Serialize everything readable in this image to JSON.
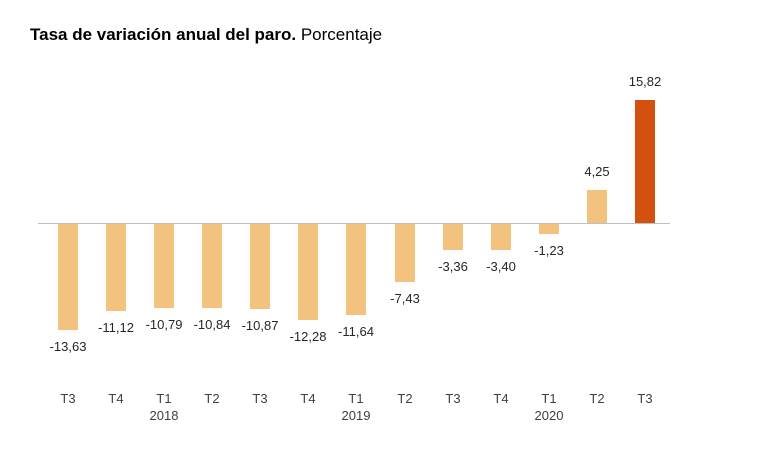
{
  "title": {
    "bold": "Tasa de variación anual del paro.",
    "regular": " Porcentaje"
  },
  "chart_data": {
    "type": "bar",
    "title": "Tasa de variación anual del paro. Porcentaje",
    "xlabel": "",
    "ylabel": "",
    "categories": [
      "T3",
      "T4",
      "T1",
      "T2",
      "T3",
      "T4",
      "T1",
      "T2",
      "T3",
      "T4",
      "T1",
      "T2",
      "T3"
    ],
    "year_labels": [
      "",
      "",
      "2018",
      "",
      "",
      "",
      "2019",
      "",
      "",
      "",
      "2020",
      "",
      ""
    ],
    "values": [
      -13.63,
      -11.12,
      -10.79,
      -10.84,
      -10.87,
      -12.28,
      -11.64,
      -7.43,
      -3.36,
      -3.4,
      -1.23,
      4.25,
      15.82
    ],
    "value_labels": [
      "-13,63",
      "-11,12",
      "-10,79",
      "-10,84",
      "-10,87",
      "-12,28",
      "-11,64",
      "-7,43",
      "-3,36",
      "-3,40",
      "-1,23",
      "4,25",
      "15,82"
    ],
    "ylim": [
      -16,
      18
    ],
    "grid": false,
    "legend": false,
    "zero_baseline": true,
    "colors": {
      "bar_default": "#F3C27F",
      "bar_highlight": "#D3510E",
      "highlight_index": 12,
      "axis_line": "#BFBFBF",
      "value_label_text": "#262626",
      "axis_label_text": "#404040",
      "title_text": "#000000"
    }
  }
}
